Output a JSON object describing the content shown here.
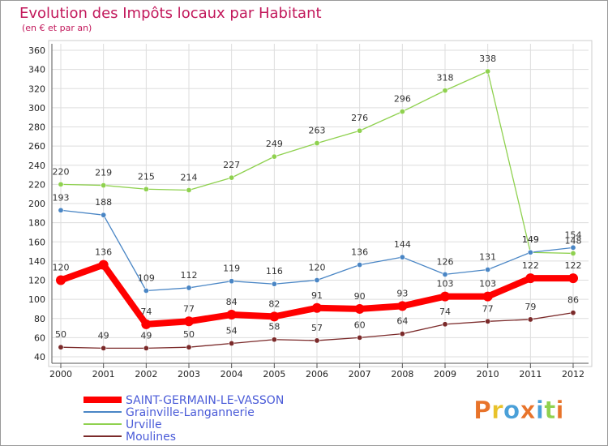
{
  "chart_data": {
    "type": "line",
    "title": "Evolution des Impôts locaux par Habitant",
    "subtitle": "(en € et par an)",
    "xlabel": "",
    "ylabel": "",
    "ylim": [
      40,
      360
    ],
    "yticks": [
      40,
      60,
      80,
      100,
      120,
      140,
      160,
      180,
      200,
      220,
      240,
      260,
      280,
      300,
      320,
      340,
      360
    ],
    "x": [
      "2000",
      "2001",
      "2002",
      "2003",
      "2004",
      "2005",
      "2006",
      "2007",
      "2008",
      "2009",
      "2010",
      "2011",
      "2012"
    ],
    "grid": true,
    "legend_position": "bottom-left",
    "series": [
      {
        "name": "SAINT-GERMAIN-LE-VASSON",
        "color": "#ff0000",
        "values": [
          120,
          136,
          74,
          77,
          84,
          82,
          91,
          90,
          93,
          103,
          103,
          122,
          122
        ]
      },
      {
        "name": "Grainville-Langannerie",
        "color": "#4a86c5",
        "values": [
          193,
          188,
          109,
          112,
          119,
          116,
          120,
          136,
          144,
          126,
          131,
          149,
          154
        ]
      },
      {
        "name": "Urville",
        "color": "#8fd14f",
        "values": [
          220,
          219,
          215,
          214,
          227,
          249,
          263,
          276,
          296,
          318,
          338,
          149,
          148
        ]
      },
      {
        "name": "Moulines",
        "color": "#7b2a2a",
        "values": [
          50,
          49,
          49,
          50,
          54,
          58,
          57,
          60,
          64,
          74,
          77,
          79,
          86
        ]
      }
    ]
  },
  "logo": {
    "text": "Proxiti",
    "colors": [
      "#e8732a",
      "#e8c22a",
      "#4aa0d8",
      "#e8732a",
      "#4aa0d8",
      "#8fd14f",
      "#e8732a"
    ]
  }
}
